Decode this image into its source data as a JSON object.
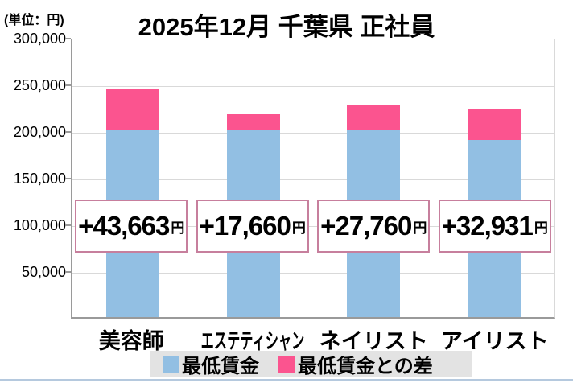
{
  "unit_label": "(単位：円)",
  "title": "2025年12月 千葉県 正社員",
  "chart_data": {
    "type": "bar",
    "stacked": true,
    "title": "2025年12月 千葉県 正社員",
    "unit": "円",
    "categories": [
      "美容師",
      "エステティシャン",
      "ネイリスト",
      "アイリスト"
    ],
    "series": [
      {
        "name": "最低賃金",
        "color": "#92bfe3",
        "values": [
          200000,
          200000,
          200000,
          190000
        ]
      },
      {
        "name": "最低賃金との差",
        "color": "#fb548f",
        "values": [
          43663,
          17660,
          27760,
          32931
        ]
      }
    ],
    "totals": [
      243663,
      217660,
      227760,
      222931
    ],
    "diff_labels": [
      "+43,663",
      "+17,660",
      "+27,760",
      "+32,931"
    ],
    "diff_label_suffix": "円",
    "ylim": [
      0,
      300000
    ],
    "yticks": [
      {
        "value": 300000,
        "label": "300,000"
      },
      {
        "value": 250000,
        "label": "250,000"
      },
      {
        "value": 200000,
        "label": "200,000"
      },
      {
        "value": 150000,
        "label": "150,000"
      },
      {
        "value": 100000,
        "label": "100,000"
      },
      {
        "value": 50000,
        "label": "50,000"
      }
    ],
    "grid": true,
    "legend_position": "bottom"
  },
  "colors": {
    "min_wage_bar": "#92bfe3",
    "diff_bar": "#fb548f",
    "diff_box_border": "#c77f9d",
    "gridline": "#d9d9d9",
    "axis": "#9a9a9a",
    "legend_background": "#e3e3e3",
    "bottom_rule": "#b5c9de"
  }
}
